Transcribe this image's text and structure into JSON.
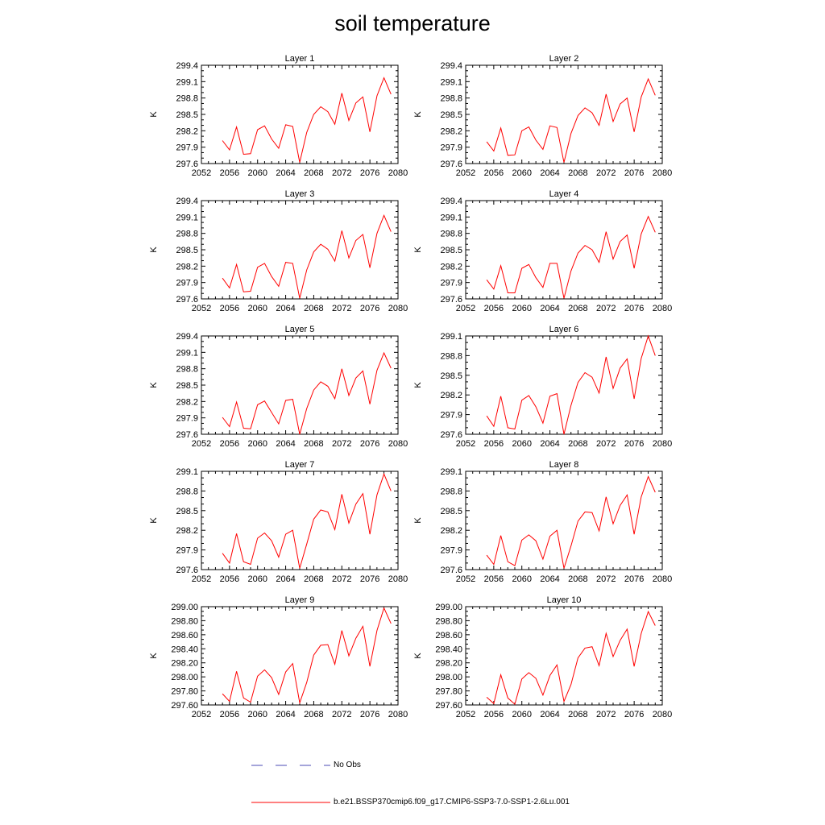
{
  "title": "soil temperature",
  "legend": [
    {
      "label": "No Obs",
      "color": "#4b4bb4",
      "style": "dashed"
    },
    {
      "label": "b.e21.BSSP370cmip6.f09_g17.CMIP6-SSP3-7.0-SSP1-2.6Lu.001",
      "color": "#ff0000",
      "style": "solid"
    }
  ],
  "chart_data": [
    {
      "type": "line",
      "title": "Layer 1",
      "ylabel": "K",
      "xlim": [
        2052,
        2080
      ],
      "ylim": [
        297.6,
        299.4
      ],
      "xticks": [
        "2052",
        "2056",
        "2060",
        "2064",
        "2068",
        "2072",
        "2076",
        "2080"
      ],
      "yticks": [
        "297.6",
        "297.9",
        "298.2",
        "298.5",
        "298.8",
        "299.1",
        "299.4"
      ],
      "x": [
        2055,
        2056,
        2057,
        2058,
        2059,
        2060,
        2061,
        2062,
        2063,
        2064,
        2065,
        2066,
        2067,
        2068,
        2069,
        2070,
        2071,
        2072,
        2073,
        2074,
        2075,
        2076,
        2077,
        2078,
        2079
      ],
      "series": [
        {
          "values": [
            298.02,
            297.85,
            298.27,
            297.77,
            297.78,
            298.22,
            298.29,
            298.05,
            297.88,
            298.31,
            298.28,
            297.62,
            298.17,
            298.5,
            298.64,
            298.55,
            298.32,
            298.89,
            298.39,
            298.71,
            298.82,
            298.18,
            298.84,
            299.17,
            298.87
          ]
        }
      ]
    },
    {
      "type": "line",
      "title": "Layer 2",
      "ylabel": "K",
      "xlim": [
        2052,
        2080
      ],
      "ylim": [
        297.6,
        299.4
      ],
      "xticks": [
        "2052",
        "2056",
        "2060",
        "2064",
        "2068",
        "2072",
        "2076",
        "2080"
      ],
      "yticks": [
        "297.6",
        "297.9",
        "298.2",
        "298.5",
        "298.8",
        "299.1",
        "299.4"
      ],
      "x": [
        2055,
        2056,
        2057,
        2058,
        2059,
        2060,
        2061,
        2062,
        2063,
        2064,
        2065,
        2066,
        2067,
        2068,
        2069,
        2070,
        2071,
        2072,
        2073,
        2074,
        2075,
        2076,
        2077,
        2078,
        2079
      ],
      "series": [
        {
          "values": [
            298.0,
            297.83,
            298.25,
            297.75,
            297.76,
            298.2,
            298.27,
            298.03,
            297.86,
            298.29,
            298.26,
            297.62,
            298.15,
            298.48,
            298.62,
            298.53,
            298.3,
            298.87,
            298.37,
            298.69,
            298.8,
            298.18,
            298.82,
            299.15,
            298.85
          ]
        }
      ]
    },
    {
      "type": "line",
      "title": "Layer 3",
      "ylabel": "K",
      "xlim": [
        2052,
        2080
      ],
      "ylim": [
        297.6,
        299.4
      ],
      "xticks": [
        "2052",
        "2056",
        "2060",
        "2064",
        "2068",
        "2072",
        "2076",
        "2080"
      ],
      "yticks": [
        "297.6",
        "297.9",
        "298.2",
        "298.5",
        "298.8",
        "299.1",
        "299.4"
      ],
      "x": [
        2055,
        2056,
        2057,
        2058,
        2059,
        2060,
        2061,
        2062,
        2063,
        2064,
        2065,
        2066,
        2067,
        2068,
        2069,
        2070,
        2071,
        2072,
        2073,
        2074,
        2075,
        2076,
        2077,
        2078,
        2079
      ],
      "series": [
        {
          "values": [
            297.98,
            297.8,
            298.23,
            297.73,
            297.74,
            298.18,
            298.25,
            298.01,
            297.83,
            298.27,
            298.25,
            297.61,
            298.13,
            298.46,
            298.6,
            298.51,
            298.29,
            298.85,
            298.35,
            298.67,
            298.78,
            298.17,
            298.8,
            299.13,
            298.83
          ]
        }
      ]
    },
    {
      "type": "line",
      "title": "Layer 4",
      "ylabel": "K",
      "xlim": [
        2052,
        2080
      ],
      "ylim": [
        297.6,
        299.4
      ],
      "xticks": [
        "2052",
        "2056",
        "2060",
        "2064",
        "2068",
        "2072",
        "2076",
        "2080"
      ],
      "yticks": [
        "297.6",
        "297.9",
        "298.2",
        "298.5",
        "298.8",
        "299.1",
        "299.4"
      ],
      "x": [
        2055,
        2056,
        2057,
        2058,
        2059,
        2060,
        2061,
        2062,
        2063,
        2064,
        2065,
        2066,
        2067,
        2068,
        2069,
        2070,
        2071,
        2072,
        2073,
        2074,
        2075,
        2076,
        2077,
        2078,
        2079
      ],
      "series": [
        {
          "values": [
            297.95,
            297.78,
            298.21,
            297.71,
            297.71,
            298.16,
            298.23,
            297.99,
            297.81,
            298.25,
            298.25,
            297.61,
            298.11,
            298.44,
            298.58,
            298.5,
            298.27,
            298.83,
            298.33,
            298.65,
            298.77,
            298.16,
            298.79,
            299.11,
            298.82
          ]
        }
      ]
    },
    {
      "type": "line",
      "title": "Layer 5",
      "ylabel": "K",
      "xlim": [
        2052,
        2080
      ],
      "ylim": [
        297.6,
        299.4
      ],
      "xticks": [
        "2052",
        "2056",
        "2060",
        "2064",
        "2068",
        "2072",
        "2076",
        "2080"
      ],
      "yticks": [
        "297.6",
        "297.9",
        "298.2",
        "298.5",
        "298.8",
        "299.1",
        "299.4"
      ],
      "x": [
        2055,
        2056,
        2057,
        2058,
        2059,
        2060,
        2061,
        2062,
        2063,
        2064,
        2065,
        2066,
        2067,
        2068,
        2069,
        2070,
        2071,
        2072,
        2073,
        2074,
        2075,
        2076,
        2077,
        2078,
        2079
      ],
      "series": [
        {
          "values": [
            297.91,
            297.74,
            298.19,
            297.71,
            297.7,
            298.14,
            298.21,
            298.0,
            297.79,
            298.22,
            298.24,
            297.6,
            298.07,
            298.41,
            298.56,
            298.48,
            298.25,
            298.8,
            298.31,
            298.63,
            298.76,
            298.15,
            298.77,
            299.09,
            298.81
          ]
        }
      ]
    },
    {
      "type": "line",
      "title": "Layer 6",
      "ylabel": "K",
      "xlim": [
        2052,
        2080
      ],
      "ylim": [
        297.6,
        299.1
      ],
      "xticks": [
        "2052",
        "2056",
        "2060",
        "2064",
        "2068",
        "2072",
        "2076",
        "2080"
      ],
      "yticks": [
        "297.6",
        "297.9",
        "298.2",
        "298.5",
        "298.8",
        "299.1"
      ],
      "x": [
        2055,
        2056,
        2057,
        2058,
        2059,
        2060,
        2061,
        2062,
        2063,
        2064,
        2065,
        2066,
        2067,
        2068,
        2069,
        2070,
        2071,
        2072,
        2073,
        2074,
        2075,
        2076,
        2077,
        2078,
        2079
      ],
      "series": [
        {
          "values": [
            297.88,
            297.72,
            298.18,
            297.7,
            297.68,
            298.12,
            298.19,
            298.02,
            297.77,
            298.18,
            298.22,
            297.6,
            298.04,
            298.39,
            298.54,
            298.47,
            298.23,
            298.78,
            298.3,
            298.61,
            298.75,
            298.14,
            298.76,
            299.1,
            298.8
          ]
        }
      ]
    },
    {
      "type": "line",
      "title": "Layer 7",
      "ylabel": "K",
      "xlim": [
        2052,
        2080
      ],
      "ylim": [
        297.6,
        299.1
      ],
      "xticks": [
        "2052",
        "2056",
        "2060",
        "2064",
        "2068",
        "2072",
        "2076",
        "2080"
      ],
      "yticks": [
        "297.6",
        "297.9",
        "298.2",
        "298.5",
        "298.8",
        "299.1"
      ],
      "x": [
        2055,
        2056,
        2057,
        2058,
        2059,
        2060,
        2061,
        2062,
        2063,
        2064,
        2065,
        2066,
        2067,
        2068,
        2069,
        2070,
        2071,
        2072,
        2073,
        2074,
        2075,
        2076,
        2077,
        2078,
        2079
      ],
      "series": [
        {
          "values": [
            297.85,
            297.7,
            298.15,
            297.72,
            297.68,
            298.08,
            298.16,
            298.04,
            297.79,
            298.14,
            298.2,
            297.62,
            297.99,
            298.37,
            298.51,
            298.48,
            298.21,
            298.75,
            298.31,
            298.6,
            298.76,
            298.14,
            298.74,
            299.06,
            298.8
          ]
        }
      ]
    },
    {
      "type": "line",
      "title": "Layer 8",
      "ylabel": "K",
      "xlim": [
        2052,
        2080
      ],
      "ylim": [
        297.6,
        299.1
      ],
      "xticks": [
        "2052",
        "2056",
        "2060",
        "2064",
        "2068",
        "2072",
        "2076",
        "2080"
      ],
      "yticks": [
        "297.6",
        "297.9",
        "298.2",
        "298.5",
        "298.8",
        "299.1"
      ],
      "x": [
        2055,
        2056,
        2057,
        2058,
        2059,
        2060,
        2061,
        2062,
        2063,
        2064,
        2065,
        2066,
        2067,
        2068,
        2069,
        2070,
        2071,
        2072,
        2073,
        2074,
        2075,
        2076,
        2077,
        2078,
        2079
      ],
      "series": [
        {
          "values": [
            297.82,
            297.68,
            298.12,
            297.72,
            297.66,
            298.05,
            298.13,
            298.04,
            297.76,
            298.11,
            298.2,
            297.62,
            297.96,
            298.34,
            298.48,
            298.47,
            298.19,
            298.71,
            298.3,
            298.58,
            298.74,
            298.14,
            298.71,
            299.02,
            298.78
          ]
        }
      ]
    },
    {
      "type": "line",
      "title": "Layer 9",
      "ylabel": "K",
      "xlim": [
        2052,
        2080
      ],
      "ylim": [
        297.6,
        299.0
      ],
      "xticks": [
        "2052",
        "2056",
        "2060",
        "2064",
        "2068",
        "2072",
        "2076",
        "2080"
      ],
      "yticks": [
        "297.60",
        "297.80",
        "298.00",
        "298.20",
        "298.40",
        "298.60",
        "298.80",
        "299.00"
      ],
      "x": [
        2055,
        2056,
        2057,
        2058,
        2059,
        2060,
        2061,
        2062,
        2063,
        2064,
        2065,
        2066,
        2067,
        2068,
        2069,
        2070,
        2071,
        2072,
        2073,
        2074,
        2075,
        2076,
        2077,
        2078,
        2079
      ],
      "series": [
        {
          "values": [
            297.76,
            297.65,
            298.08,
            297.7,
            297.64,
            298.01,
            298.1,
            297.99,
            297.75,
            298.07,
            298.19,
            297.63,
            297.92,
            298.31,
            298.45,
            298.46,
            298.18,
            298.66,
            298.3,
            298.55,
            298.72,
            298.15,
            298.66,
            298.98,
            298.76
          ]
        }
      ]
    },
    {
      "type": "line",
      "title": "Layer 10",
      "ylabel": "K",
      "xlim": [
        2052,
        2080
      ],
      "ylim": [
        297.6,
        299.0
      ],
      "xticks": [
        "2052",
        "2056",
        "2060",
        "2064",
        "2068",
        "2072",
        "2076",
        "2080"
      ],
      "yticks": [
        "297.60",
        "297.80",
        "298.00",
        "298.20",
        "298.40",
        "298.60",
        "298.80",
        "299.00"
      ],
      "x": [
        2055,
        2056,
        2057,
        2058,
        2059,
        2060,
        2061,
        2062,
        2063,
        2064,
        2065,
        2066,
        2067,
        2068,
        2069,
        2070,
        2071,
        2072,
        2073,
        2074,
        2075,
        2076,
        2077,
        2078,
        2079
      ],
      "series": [
        {
          "values": [
            297.71,
            297.62,
            298.03,
            297.7,
            297.61,
            297.97,
            298.06,
            297.98,
            297.74,
            298.02,
            298.17,
            297.65,
            297.89,
            298.27,
            298.41,
            298.43,
            298.16,
            298.62,
            298.29,
            298.52,
            298.68,
            298.15,
            298.62,
            298.93,
            298.73
          ]
        }
      ]
    }
  ]
}
